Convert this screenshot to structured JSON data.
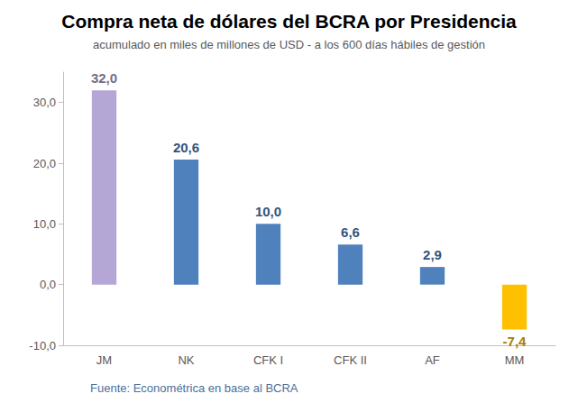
{
  "chart_data": {
    "type": "bar",
    "title": "Compra neta de dólares del BCRA por Presidencia",
    "subtitle": "acumulado en miles de millones de USD - a los 600 días hábiles de gestión",
    "source": "Fuente: Econométrica en base al BCRA",
    "categories": [
      "JM",
      "NK",
      "CFK I",
      "CFK II",
      "AF",
      "MM"
    ],
    "values": [
      32.0,
      20.6,
      10.0,
      6.6,
      2.9,
      -7.4
    ],
    "value_labels": [
      "32,0",
      "20,6",
      "10,0",
      "6,6",
      "2,9",
      "-7,4"
    ],
    "colors": [
      "#b4a7d6",
      "#4f81bd",
      "#4f81bd",
      "#4f81bd",
      "#4f81bd",
      "#ffc000"
    ],
    "ylim": [
      -10,
      35
    ],
    "yticks": [
      {
        "value": -10,
        "label": "-10,0"
      },
      {
        "value": 0,
        "label": "0,0"
      },
      {
        "value": 10,
        "label": "10,0"
      },
      {
        "value": 20,
        "label": "20,0"
      },
      {
        "value": 30,
        "label": "30,0"
      }
    ],
    "grid": false,
    "data_labels": true
  }
}
